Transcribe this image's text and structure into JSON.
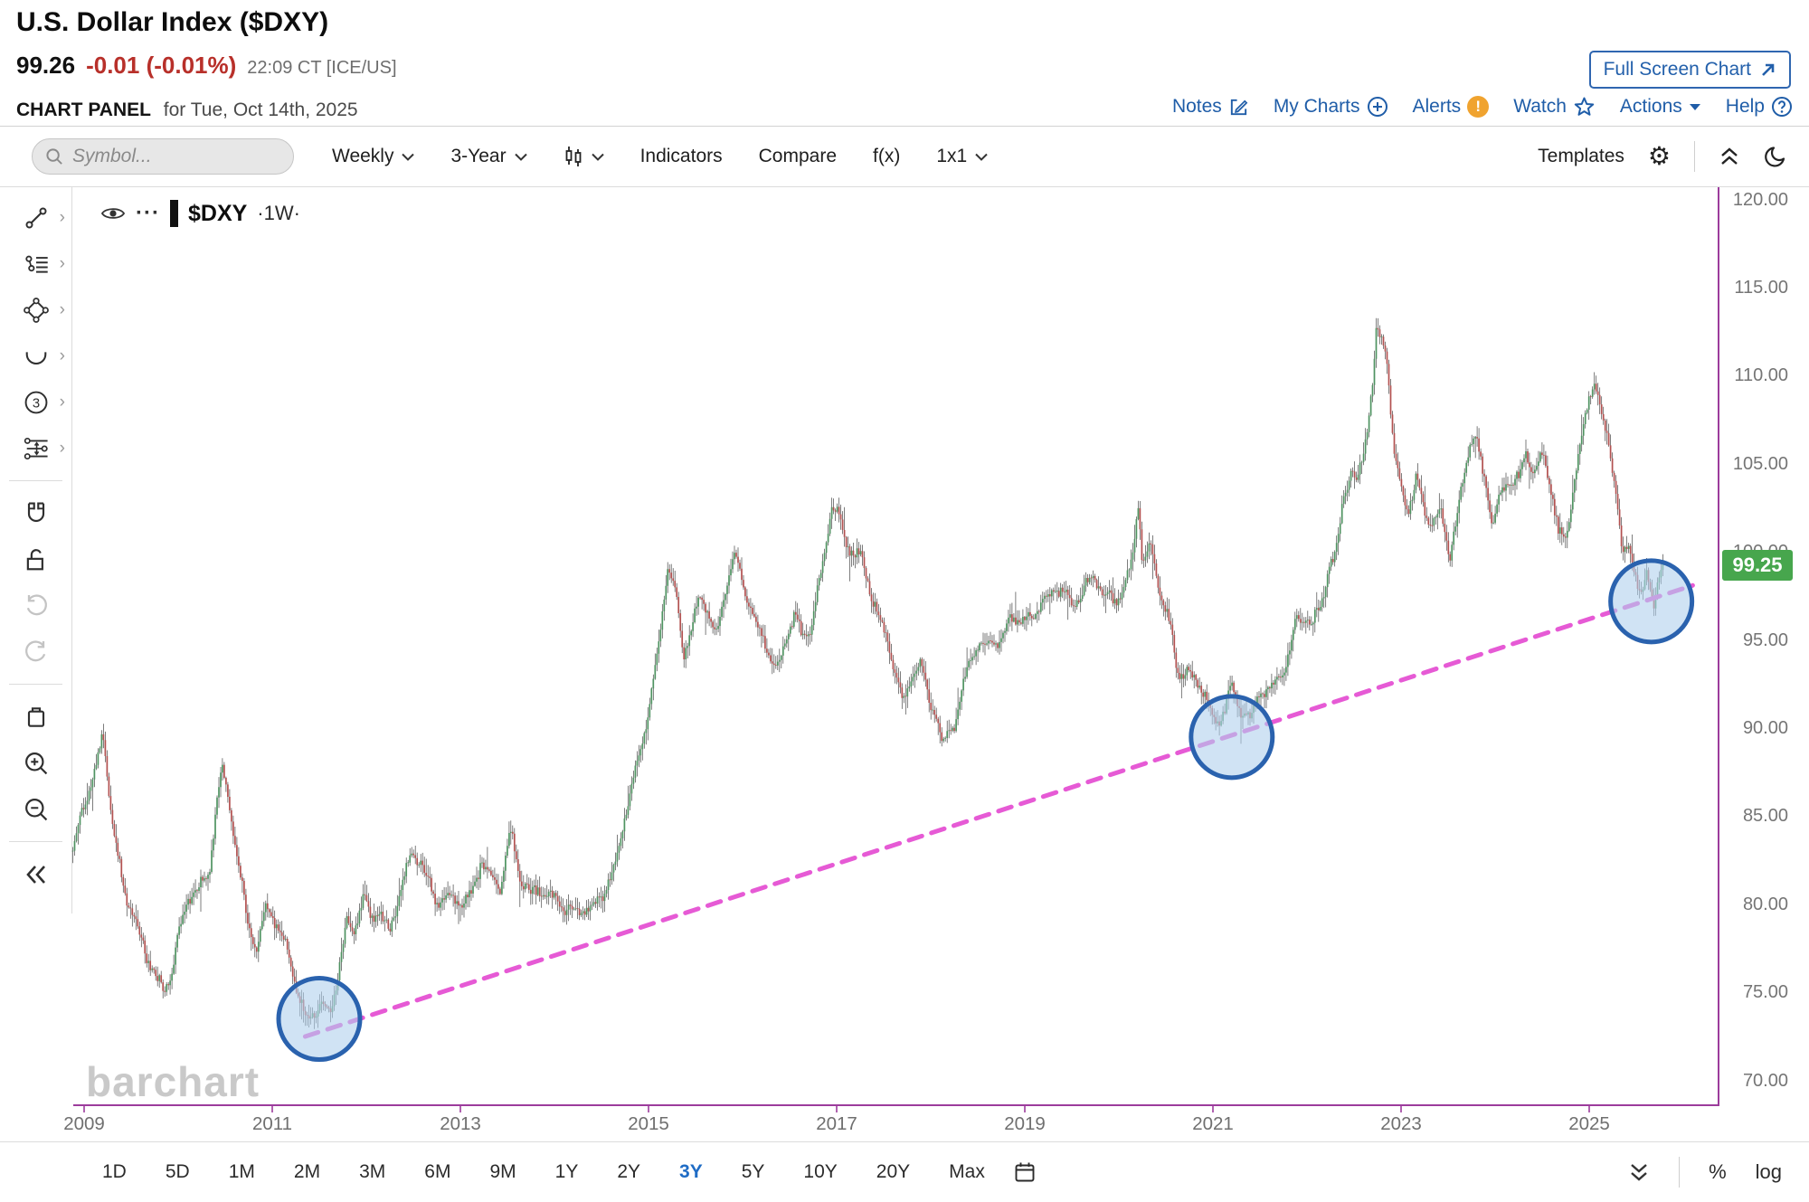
{
  "header": {
    "title": "U.S. Dollar Index ($DXY)",
    "last_price": "99.26",
    "change": "-0.01 (-0.01%)",
    "quote_time": "22:09 CT [ICE/US]",
    "full_screen_button": "Full Screen Chart",
    "panel_title": "CHART PANEL",
    "panel_subtitle": "for Tue, Oct 14th, 2025",
    "menu": {
      "notes": "Notes",
      "my_charts": "My Charts",
      "alerts": "Alerts",
      "alert_mark": "!",
      "watch": "Watch",
      "actions": "Actions",
      "help": "Help"
    }
  },
  "toolbar": {
    "symbol_placeholder": "Symbol...",
    "frequency": "Weekly",
    "range": "3-Year",
    "indicators": "Indicators",
    "compare": "Compare",
    "fx": "f(x)",
    "grid_layout": "1x1",
    "templates": "Templates"
  },
  "legend": {
    "menu_dots": "···",
    "symbol": "$DXY",
    "interval": "·1W·"
  },
  "watermark": "barchart",
  "chart_data": {
    "type": "candlestick",
    "symbol": "$DXY",
    "interval": "weekly",
    "title": "U.S. Dollar Index weekly candles with rising dashed trendline connecting 2011, 2021 and 2025 lows (three circled touch points)",
    "last_price_label": "99.25",
    "last_price_value": 99.25,
    "y_axis": {
      "ylim": [
        68.6,
        120.7
      ],
      "tick_values": [
        120,
        115,
        110,
        105,
        100,
        95,
        90,
        85,
        80,
        75,
        70
      ],
      "tick_labels": [
        "120.00",
        "115.00",
        "110.00",
        "105.00",
        "100.00",
        "95.00",
        "90.00",
        "85.00",
        "80.00",
        "75.00",
        "70.00"
      ]
    },
    "x_axis": {
      "ticks": [
        2009,
        2011,
        2013,
        2015,
        2017,
        2019,
        2021,
        2023,
        2025
      ],
      "start_year": 2008.88,
      "end_year": 2025.79
    },
    "colors": {
      "up": "#4f9361",
      "down": "#b25150",
      "wick": "#474747",
      "trendline": "#e65ad5",
      "axis": "#9c3c9c",
      "badge": "#47a64d",
      "circle_fill": "rgba(176,209,237,0.6)",
      "circle_stroke": "#2a62ae"
    },
    "anchors": [
      [
        2008.88,
        83.0
      ],
      [
        2009.0,
        85.5
      ],
      [
        2009.1,
        87.0
      ],
      [
        2009.2,
        89.3
      ],
      [
        2009.3,
        84.5
      ],
      [
        2009.42,
        81.0
      ],
      [
        2009.5,
        80.0
      ],
      [
        2009.6,
        78.3
      ],
      [
        2009.72,
        76.5
      ],
      [
        2009.85,
        75.0
      ],
      [
        2009.92,
        75.5
      ],
      [
        2010.0,
        78.0
      ],
      [
        2010.1,
        80.0
      ],
      [
        2010.22,
        80.8
      ],
      [
        2010.33,
        82.0
      ],
      [
        2010.42,
        86.5
      ],
      [
        2010.47,
        88.3
      ],
      [
        2010.55,
        85.5
      ],
      [
        2010.63,
        83.0
      ],
      [
        2010.72,
        79.5
      ],
      [
        2010.83,
        77.0
      ],
      [
        2010.92,
        79.5
      ],
      [
        2011.0,
        79.2
      ],
      [
        2011.08,
        78.0
      ],
      [
        2011.17,
        77.3
      ],
      [
        2011.25,
        75.5
      ],
      [
        2011.37,
        73.6
      ],
      [
        2011.45,
        74.3
      ],
      [
        2011.55,
        74.5
      ],
      [
        2011.63,
        74.2
      ],
      [
        2011.72,
        76.5
      ],
      [
        2011.8,
        78.8
      ],
      [
        2011.88,
        78.3
      ],
      [
        2011.97,
        80.2
      ],
      [
        2012.05,
        79.0
      ],
      [
        2012.15,
        79.5
      ],
      [
        2012.25,
        78.8
      ],
      [
        2012.38,
        81.5
      ],
      [
        2012.47,
        82.9
      ],
      [
        2012.58,
        82.5
      ],
      [
        2012.67,
        81.0
      ],
      [
        2012.75,
        79.8
      ],
      [
        2012.88,
        80.2
      ],
      [
        2013.0,
        79.8
      ],
      [
        2013.13,
        80.8
      ],
      [
        2013.22,
        82.8
      ],
      [
        2013.33,
        82.0
      ],
      [
        2013.42,
        81.2
      ],
      [
        2013.53,
        84.3
      ],
      [
        2013.63,
        81.3
      ],
      [
        2013.75,
        80.3
      ],
      [
        2013.88,
        80.7
      ],
      [
        2014.0,
        80.3
      ],
      [
        2014.13,
        80.0
      ],
      [
        2014.25,
        79.8
      ],
      [
        2014.38,
        80.0
      ],
      [
        2014.5,
        80.3
      ],
      [
        2014.63,
        81.5
      ],
      [
        2014.75,
        84.8
      ],
      [
        2014.88,
        87.8
      ],
      [
        2015.0,
        91.0
      ],
      [
        2015.1,
        94.5
      ],
      [
        2015.2,
        99.5
      ],
      [
        2015.3,
        97.5
      ],
      [
        2015.37,
        94.2
      ],
      [
        2015.45,
        95.3
      ],
      [
        2015.55,
        97.3
      ],
      [
        2015.63,
        96.3
      ],
      [
        2015.72,
        94.9
      ],
      [
        2015.83,
        98.3
      ],
      [
        2015.92,
        100.0
      ],
      [
        2016.0,
        98.8
      ],
      [
        2016.13,
        96.2
      ],
      [
        2016.25,
        94.8
      ],
      [
        2016.37,
        93.1
      ],
      [
        2016.45,
        94.6
      ],
      [
        2016.55,
        96.1
      ],
      [
        2016.63,
        95.0
      ],
      [
        2016.72,
        95.5
      ],
      [
        2016.83,
        98.8
      ],
      [
        2016.95,
        103.2
      ],
      [
        2017.03,
        102.2
      ],
      [
        2017.13,
        100.3
      ],
      [
        2017.25,
        99.8
      ],
      [
        2017.37,
        97.2
      ],
      [
        2017.5,
        95.3
      ],
      [
        2017.63,
        93.0
      ],
      [
        2017.7,
        91.5
      ],
      [
        2017.8,
        93.0
      ],
      [
        2017.88,
        94.1
      ],
      [
        2017.97,
        92.3
      ],
      [
        2018.08,
        90.2
      ],
      [
        2018.13,
        89.1
      ],
      [
        2018.25,
        90.0
      ],
      [
        2018.33,
        91.8
      ],
      [
        2018.45,
        94.2
      ],
      [
        2018.55,
        94.5
      ],
      [
        2018.63,
        95.1
      ],
      [
        2018.75,
        95.0
      ],
      [
        2018.85,
        96.8
      ],
      [
        2018.97,
        96.2
      ],
      [
        2019.08,
        96.5
      ],
      [
        2019.2,
        96.8
      ],
      [
        2019.3,
        97.5
      ],
      [
        2019.42,
        97.6
      ],
      [
        2019.5,
        96.8
      ],
      [
        2019.63,
        98.1
      ],
      [
        2019.73,
        99.0
      ],
      [
        2019.83,
        97.9
      ],
      [
        2019.95,
        97.3
      ],
      [
        2020.05,
        97.6
      ],
      [
        2020.13,
        99.1
      ],
      [
        2020.21,
        102.4
      ],
      [
        2020.25,
        99.0
      ],
      [
        2020.33,
        100.2
      ],
      [
        2020.45,
        97.5
      ],
      [
        2020.55,
        96.0
      ],
      [
        2020.63,
        93.3
      ],
      [
        2020.72,
        93.5
      ],
      [
        2020.83,
        93.0
      ],
      [
        2020.92,
        91.8
      ],
      [
        2021.02,
        89.9
      ],
      [
        2021.1,
        90.5
      ],
      [
        2021.2,
        91.9
      ],
      [
        2021.3,
        90.8
      ],
      [
        2021.4,
        90.5
      ],
      [
        2021.5,
        92.3
      ],
      [
        2021.6,
        92.6
      ],
      [
        2021.7,
        93.2
      ],
      [
        2021.8,
        94.1
      ],
      [
        2021.88,
        96.1
      ],
      [
        2021.97,
        95.9
      ],
      [
        2022.05,
        95.5
      ],
      [
        2022.13,
        96.6
      ],
      [
        2022.22,
        98.5
      ],
      [
        2022.3,
        99.8
      ],
      [
        2022.38,
        103.2
      ],
      [
        2022.47,
        104.9
      ],
      [
        2022.53,
        104.2
      ],
      [
        2022.63,
        107.0
      ],
      [
        2022.7,
        109.8
      ],
      [
        2022.74,
        112.9
      ],
      [
        2022.8,
        112.0
      ],
      [
        2022.85,
        110.8
      ],
      [
        2022.92,
        105.2
      ],
      [
        2023.0,
        103.5
      ],
      [
        2023.08,
        102.0
      ],
      [
        2023.17,
        104.1
      ],
      [
        2023.25,
        102.5
      ],
      [
        2023.33,
        101.7
      ],
      [
        2023.42,
        102.9
      ],
      [
        2023.52,
        100.0
      ],
      [
        2023.6,
        102.4
      ],
      [
        2023.7,
        105.6
      ],
      [
        2023.78,
        106.6
      ],
      [
        2023.88,
        104.0
      ],
      [
        2023.97,
        101.4
      ],
      [
        2024.05,
        102.9
      ],
      [
        2024.15,
        104.0
      ],
      [
        2024.25,
        104.4
      ],
      [
        2024.32,
        106.0
      ],
      [
        2024.42,
        104.7
      ],
      [
        2024.5,
        105.8
      ],
      [
        2024.58,
        104.3
      ],
      [
        2024.67,
        101.0
      ],
      [
        2024.75,
        100.4
      ],
      [
        2024.83,
        103.3
      ],
      [
        2024.92,
        106.0
      ],
      [
        2025.0,
        108.9
      ],
      [
        2025.05,
        109.6
      ],
      [
        2025.13,
        107.9
      ],
      [
        2025.2,
        106.6
      ],
      [
        2025.28,
        104.1
      ],
      [
        2025.35,
        99.8
      ],
      [
        2025.42,
        100.9
      ],
      [
        2025.48,
        99.2
      ],
      [
        2025.55,
        97.3
      ],
      [
        2025.62,
        98.7
      ],
      [
        2025.68,
        96.8
      ],
      [
        2025.74,
        98.1
      ],
      [
        2025.79,
        99.26
      ]
    ],
    "trendline": {
      "from": {
        "year": 2011.35,
        "price": 72.5
      },
      "to": {
        "year": 2026.1,
        "price": 98.1
      }
    },
    "highlight_circles": [
      {
        "year": 2011.5,
        "price": 73.5,
        "radius_px": 45
      },
      {
        "year": 2021.2,
        "price": 89.5,
        "radius_px": 45
      },
      {
        "year": 2025.66,
        "price": 97.2,
        "radius_px": 45
      }
    ]
  },
  "bottom_toolbar": {
    "ranges": [
      "1D",
      "5D",
      "1M",
      "2M",
      "3M",
      "6M",
      "9M",
      "1Y",
      "2Y",
      "3Y",
      "5Y",
      "10Y",
      "20Y",
      "Max"
    ],
    "selected": "3Y",
    "percent": "%",
    "log": "log"
  }
}
